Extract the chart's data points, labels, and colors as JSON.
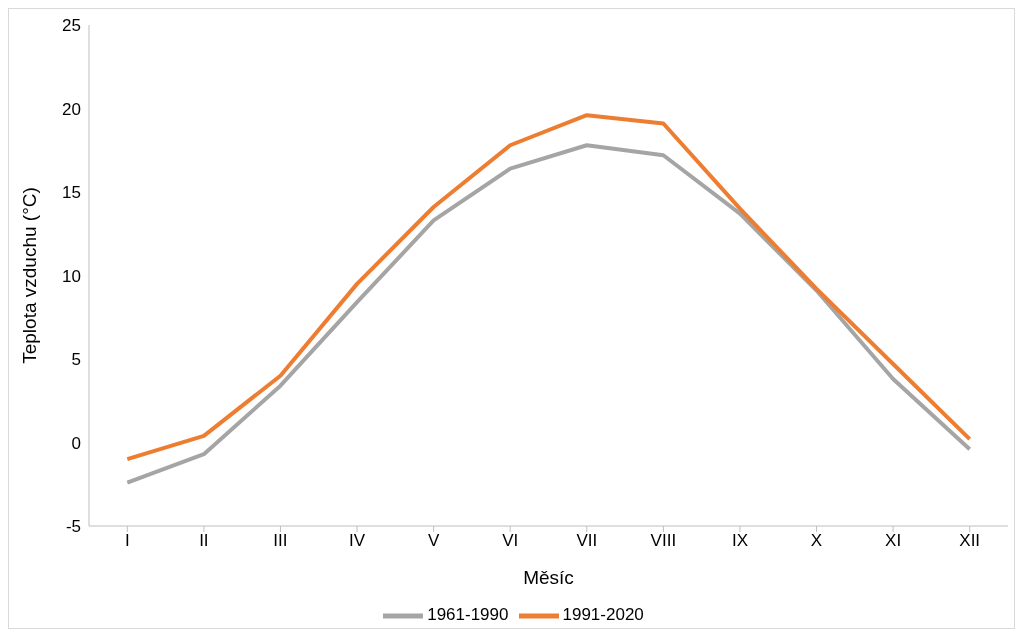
{
  "chart_data": {
    "type": "line",
    "xlabel": "Měsíc",
    "ylabel": "Teplota vzduchu (°C)",
    "categories": [
      "I",
      "II",
      "III",
      "IV",
      "V",
      "VI",
      "VII",
      "VIII",
      "IX",
      "X",
      "XI",
      "XII"
    ],
    "series": [
      {
        "name": "1961-1990",
        "color": "#a5a5a5",
        "values": [
          -2.4,
          -0.7,
          3.4,
          8.4,
          13.3,
          16.4,
          17.8,
          17.2,
          13.7,
          9.1,
          3.8,
          -0.4
        ]
      },
      {
        "name": "1991-2020",
        "color": "#ed7d31",
        "values": [
          -1.0,
          0.4,
          4.0,
          9.5,
          14.1,
          17.8,
          19.6,
          19.1,
          14.0,
          9.2,
          4.7,
          0.2
        ]
      }
    ],
    "ylim": [
      -5,
      25
    ],
    "yticks": [
      -5,
      0,
      5,
      10,
      15,
      20,
      25
    ],
    "legend": "bottom",
    "marker": "none",
    "line_style": "solid"
  }
}
